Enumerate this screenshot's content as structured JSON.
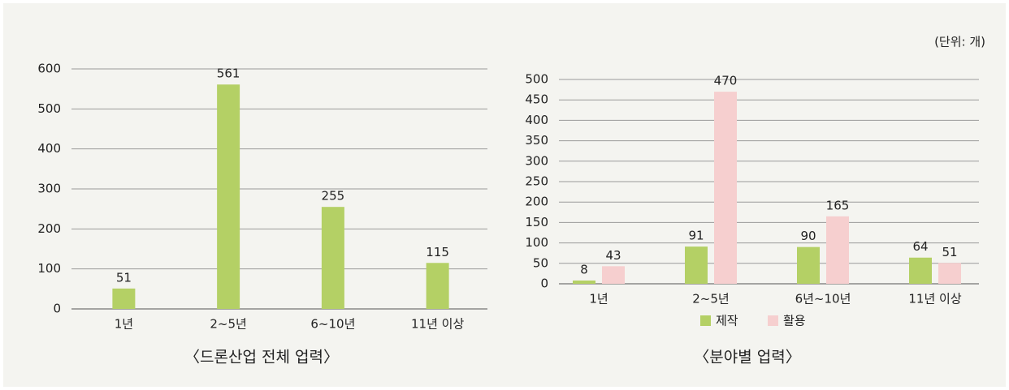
{
  "unit": "(단위: 개)",
  "chart_data": [
    {
      "type": "bar",
      "title": "〈드론산업 전체 업력〉",
      "categories": [
        "1년",
        "2~5년",
        "6~10년",
        "11년 이상"
      ],
      "values": [
        51,
        561,
        255,
        115
      ],
      "color": "#b4d065",
      "ylim": [
        0,
        600
      ],
      "yticks": [
        0,
        100,
        200,
        300,
        400,
        500,
        600
      ],
      "grid": true
    },
    {
      "type": "grouped-bar",
      "title": "〈분야별 업력〉",
      "categories": [
        "1년",
        "2~5년",
        "6년~10년",
        "11년 이상"
      ],
      "series": [
        {
          "name": "제작",
          "color": "#b4d065",
          "values": [
            8,
            91,
            90,
            64
          ]
        },
        {
          "name": "활용",
          "color": "#f6cfcf",
          "values": [
            43,
            470,
            165,
            51
          ]
        }
      ],
      "ylim": [
        0,
        500
      ],
      "yticks": [
        0,
        50,
        100,
        150,
        200,
        250,
        300,
        350,
        400,
        450,
        500
      ],
      "grid": true,
      "legend": "bottom"
    }
  ]
}
